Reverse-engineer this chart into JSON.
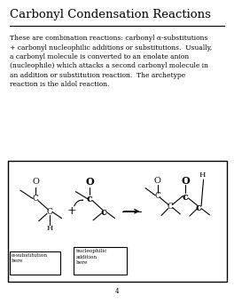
{
  "title": "Carbonyl Condensation Reactions",
  "body_text": "These are combination reactions: carbonyl α-substitutions\n+ carbonyl nucleophilic additions or substitutions.  Usually,\na carbonyl molecule is converted to an enolate anion\n(nucleophile) which attacks a second carbonyl molecule in\nan addition or substitution reaction.  The archetype\nreaction is the aldol reaction.",
  "box_left_label": "α-substitution\nhere",
  "box_right_label": "nucleophilic\naddition\nhere",
  "page_number": "4",
  "bg_color": "#ffffff",
  "text_color": "#000000",
  "title_fontsize": 9.5,
  "body_fontsize": 5.5
}
